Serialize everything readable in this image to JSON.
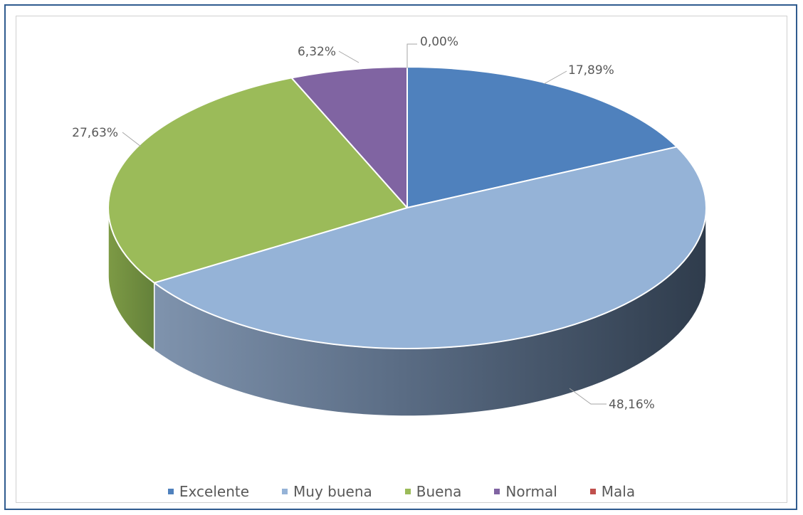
{
  "chart_data": {
    "type": "pie",
    "title": "",
    "categories": [
      "Excelente",
      "Muy buena",
      "Buena",
      "Normal",
      "Mala"
    ],
    "values": [
      17.89,
      48.16,
      27.63,
      6.32,
      0.0
    ],
    "value_labels": [
      "17,89%",
      "48,16%",
      "27,63%",
      "6,32%",
      "0,00%"
    ],
    "colors": [
      "#4f81bd",
      "#95b3d7",
      "#9bbb59",
      "#8064a2",
      "#c0504d"
    ],
    "legend_position": "bottom",
    "style": "3d-pie"
  }
}
